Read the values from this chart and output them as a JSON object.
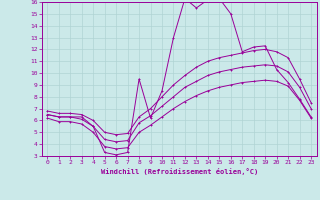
{
  "xlabel": "Windchill (Refroidissement éolien,°C)",
  "background_color": "#cbe9e9",
  "grid_color": "#b0d4d4",
  "line_color": "#990099",
  "xlim": [
    -0.5,
    23.5
  ],
  "ylim": [
    3,
    16
  ],
  "xticks": [
    0,
    1,
    2,
    3,
    4,
    5,
    6,
    7,
    8,
    9,
    10,
    11,
    12,
    13,
    14,
    15,
    16,
    17,
    18,
    19,
    20,
    21,
    22,
    23
  ],
  "yticks": [
    3,
    4,
    5,
    6,
    7,
    8,
    9,
    10,
    11,
    12,
    13,
    14,
    15,
    16
  ],
  "line1_x": [
    0,
    1,
    2,
    3,
    4,
    5,
    6,
    7,
    8,
    9,
    10,
    11,
    12,
    13,
    14,
    15,
    16,
    17,
    18,
    19,
    20,
    21,
    22,
    23
  ],
  "line1_y": [
    6.5,
    6.3,
    6.3,
    6.3,
    5.5,
    3.3,
    3.1,
    3.3,
    9.5,
    6.2,
    8.5,
    13.0,
    16.3,
    15.5,
    16.2,
    16.3,
    15.0,
    11.8,
    12.2,
    12.3,
    10.3,
    9.2,
    7.8,
    6.3
  ],
  "line2_x": [
    0,
    1,
    2,
    3,
    4,
    5,
    6,
    7,
    8,
    9,
    10,
    11,
    12,
    13,
    14,
    15,
    16,
    17,
    18,
    19,
    20,
    21,
    22,
    23
  ],
  "line2_y": [
    6.8,
    6.6,
    6.6,
    6.5,
    6.0,
    5.0,
    4.8,
    4.9,
    6.3,
    7.0,
    8.0,
    9.0,
    9.8,
    10.5,
    11.0,
    11.3,
    11.5,
    11.7,
    11.9,
    12.0,
    11.8,
    11.3,
    9.5,
    7.5
  ],
  "line3_x": [
    0,
    1,
    2,
    3,
    4,
    5,
    6,
    7,
    8,
    9,
    10,
    11,
    12,
    13,
    14,
    15,
    16,
    17,
    18,
    19,
    20,
    21,
    22,
    23
  ],
  "line3_y": [
    6.5,
    6.3,
    6.3,
    6.1,
    5.5,
    4.4,
    4.2,
    4.3,
    5.8,
    6.4,
    7.2,
    8.0,
    8.8,
    9.3,
    9.8,
    10.1,
    10.3,
    10.5,
    10.6,
    10.7,
    10.6,
    10.1,
    8.8,
    7.0
  ],
  "line4_x": [
    0,
    1,
    2,
    3,
    4,
    5,
    6,
    7,
    8,
    9,
    10,
    11,
    12,
    13,
    14,
    15,
    16,
    17,
    18,
    19,
    20,
    21,
    22,
    23
  ],
  "line4_y": [
    6.2,
    5.9,
    5.9,
    5.7,
    5.0,
    3.8,
    3.6,
    3.7,
    5.0,
    5.6,
    6.3,
    7.0,
    7.6,
    8.1,
    8.5,
    8.8,
    9.0,
    9.2,
    9.3,
    9.4,
    9.3,
    8.9,
    7.7,
    6.2
  ]
}
